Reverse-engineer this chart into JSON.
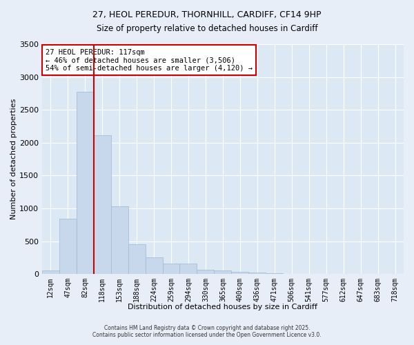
{
  "title_line1": "27, HEOL PEREDUR, THORNHILL, CARDIFF, CF14 9HP",
  "title_line2": "Size of property relative to detached houses in Cardiff",
  "xlabel": "Distribution of detached houses by size in Cardiff",
  "ylabel": "Number of detached properties",
  "bar_labels": [
    "12sqm",
    "47sqm",
    "82sqm",
    "118sqm",
    "153sqm",
    "188sqm",
    "224sqm",
    "259sqm",
    "294sqm",
    "330sqm",
    "365sqm",
    "400sqm",
    "436sqm",
    "471sqm",
    "506sqm",
    "541sqm",
    "577sqm",
    "612sqm",
    "647sqm",
    "683sqm",
    "718sqm"
  ],
  "bar_values": [
    55,
    840,
    2780,
    2110,
    1035,
    455,
    250,
    155,
    155,
    65,
    55,
    30,
    20,
    10,
    5,
    5,
    3,
    2,
    1,
    1,
    0
  ],
  "bar_color": "#c8d8ec",
  "bar_edge_color": "#a0b8d0",
  "bg_color": "#dce8f4",
  "fig_bg_color": "#e8eef8",
  "grid_color": "#ffffff",
  "vline_color": "#cc0000",
  "annotation_text": "27 HEOL PEREDUR: 117sqm\n← 46% of detached houses are smaller (3,506)\n54% of semi-detached houses are larger (4,120) →",
  "annotation_box_color": "#cc0000",
  "ylim": [
    0,
    3500
  ],
  "yticks": [
    0,
    500,
    1000,
    1500,
    2000,
    2500,
    3000,
    3500
  ],
  "footer_line1": "Contains HM Land Registry data © Crown copyright and database right 2025.",
  "footer_line2": "Contains public sector information licensed under the Open Government Licence v3.0."
}
